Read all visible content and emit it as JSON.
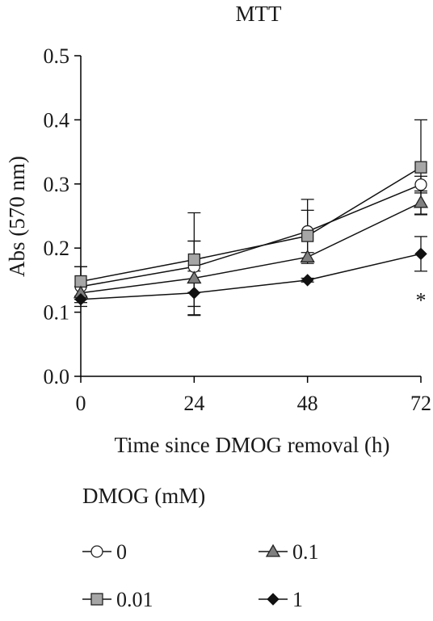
{
  "chart_data": {
    "type": "line",
    "title": "MTT",
    "xlabel": "Time since DMOG removal (h)",
    "ylabel": "Abs (570 nm)",
    "x": [
      0,
      24,
      48,
      72
    ],
    "x_tick_labels": [
      "0",
      "24",
      "48",
      "72"
    ],
    "xlim": [
      0,
      72
    ],
    "ylim": [
      0,
      0.5
    ],
    "y_ticks": [
      0.0,
      0.1,
      0.2,
      0.3,
      0.4,
      0.5
    ],
    "y_tick_labels": [
      "0.0",
      "0.1",
      "0.2",
      "0.3",
      "0.4",
      "0.5"
    ],
    "grid": false,
    "legend_title": "DMOG (mM)",
    "legend_position": "bottom",
    "series": [
      {
        "name": "0",
        "marker": "circle-open",
        "color": "#ffffff",
        "values": [
          0.14,
          0.171,
          0.226,
          0.299
        ],
        "errors": [
          0.031,
          0.04,
          0.05,
          0.013
        ]
      },
      {
        "name": "0.01",
        "marker": "square",
        "color": "#a6a6a6",
        "values": [
          0.148,
          0.182,
          0.219,
          0.326
        ],
        "errors": [
          0.023,
          0.073,
          0.04,
          0.074
        ]
      },
      {
        "name": "0.1",
        "marker": "triangle",
        "color": "#7f7f7f",
        "values": [
          0.13,
          0.153,
          0.186,
          0.271
        ],
        "errors": [
          0.01,
          0.058,
          0.007,
          0.018
        ]
      },
      {
        "name": "1",
        "marker": "diamond",
        "color": "#111111",
        "values": [
          0.12,
          0.13,
          0.15,
          0.191
        ],
        "errors": [
          0.005,
          0.034,
          0.003,
          0.027
        ]
      }
    ],
    "annotations": [
      {
        "text": "*",
        "x": 72,
        "y": 0.12
      }
    ]
  }
}
